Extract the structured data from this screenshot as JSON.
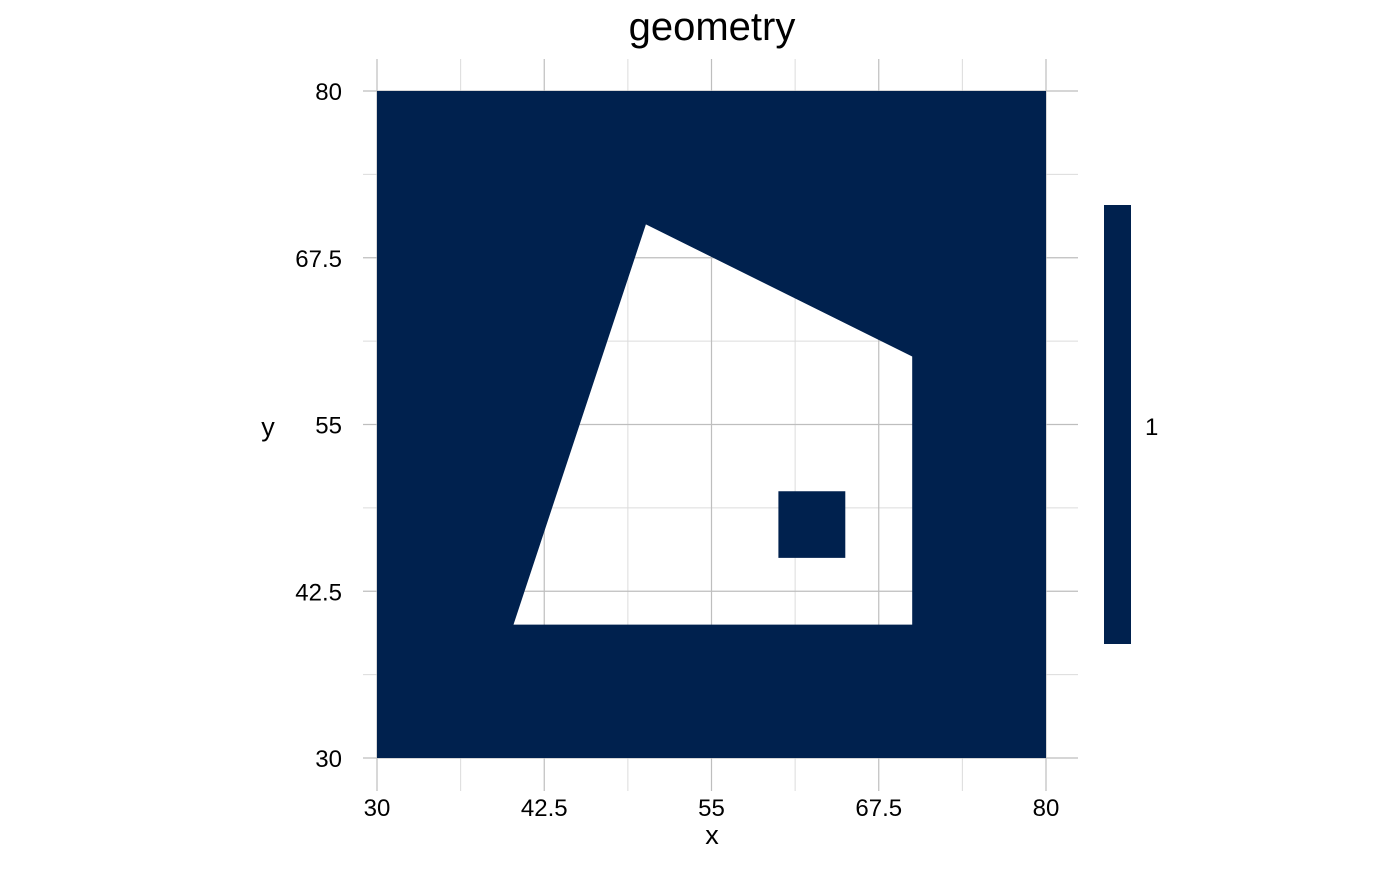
{
  "chart_data": {
    "type": "polygon",
    "title": "geometry",
    "xlabel": "x",
    "ylabel": "y",
    "xlim": [
      30,
      80
    ],
    "ylim": [
      30,
      80
    ],
    "x_ticks": [
      30,
      42.5,
      55,
      67.5,
      80
    ],
    "x_tick_labels": [
      "30",
      "42.5",
      "55",
      "67.5",
      "80"
    ],
    "y_ticks": [
      30,
      42.5,
      55,
      67.5,
      80
    ],
    "y_tick_labels": [
      "30",
      "42.5",
      "55",
      "67.5",
      "80"
    ],
    "grid": true,
    "legend": {
      "position": "right",
      "type": "colorbar",
      "labels": [
        "1"
      ]
    },
    "fill_color": "#00214e",
    "background_color": "#ffffff",
    "grid_major_color": "#bebebe",
    "grid_minor_color": "#dcdcdc",
    "polygon": {
      "value": 1,
      "outer_ring": [
        [
          30,
          30
        ],
        [
          80,
          30
        ],
        [
          80,
          80
        ],
        [
          30,
          80
        ]
      ],
      "hole": [
        [
          40.2,
          40
        ],
        [
          70,
          40
        ],
        [
          70,
          60.1
        ],
        [
          50.1,
          70
        ]
      ],
      "inner_island": [
        [
          60,
          45
        ],
        [
          65,
          45
        ],
        [
          65,
          50
        ],
        [
          60,
          50
        ]
      ]
    }
  }
}
